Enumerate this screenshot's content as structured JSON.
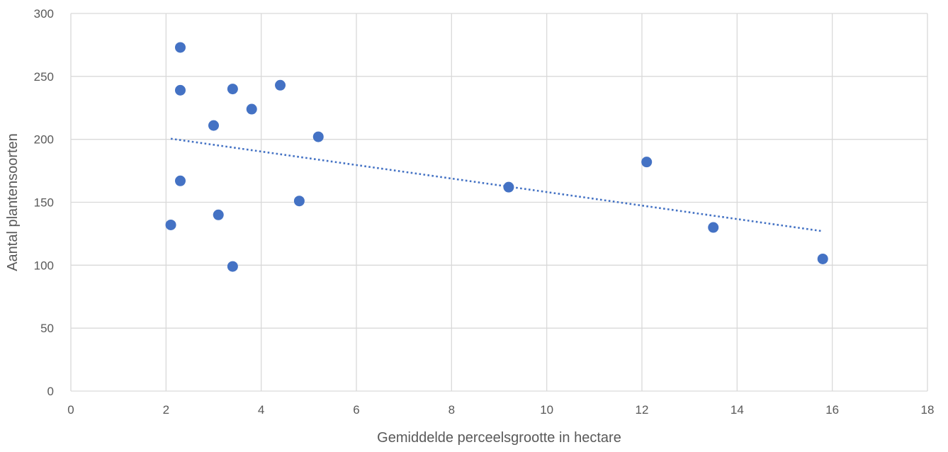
{
  "chart_data": {
    "type": "scatter",
    "title": "",
    "xlabel": "Gemiddelde perceelsgrootte in hectare",
    "ylabel": "Aantal plantensoorten",
    "xlim": [
      0,
      18
    ],
    "ylim": [
      0,
      300
    ],
    "xticks": [
      0,
      2,
      4,
      6,
      8,
      10,
      12,
      14,
      16,
      18
    ],
    "yticks": [
      0,
      50,
      100,
      150,
      200,
      250,
      300
    ],
    "grid": true,
    "legend": "none",
    "series": [
      {
        "marker_color": "#4472c4",
        "points": [
          {
            "x": 2.1,
            "y": 132
          },
          {
            "x": 2.3,
            "y": 273
          },
          {
            "x": 2.3,
            "y": 239
          },
          {
            "x": 2.3,
            "y": 167
          },
          {
            "x": 3.0,
            "y": 211
          },
          {
            "x": 3.1,
            "y": 140
          },
          {
            "x": 3.4,
            "y": 240
          },
          {
            "x": 3.4,
            "y": 99
          },
          {
            "x": 3.8,
            "y": 224
          },
          {
            "x": 4.4,
            "y": 243
          },
          {
            "x": 4.8,
            "y": 151
          },
          {
            "x": 5.2,
            "y": 202
          },
          {
            "x": 9.2,
            "y": 162
          },
          {
            "x": 12.1,
            "y": 182
          },
          {
            "x": 13.5,
            "y": 130
          },
          {
            "x": 15.8,
            "y": 105
          }
        ]
      }
    ],
    "trendline": {
      "type": "linear",
      "style": "dotted",
      "color": "#4472c4",
      "from": {
        "x": 2.1,
        "y": 200.5
      },
      "to": {
        "x": 15.8,
        "y": 127
      }
    }
  }
}
